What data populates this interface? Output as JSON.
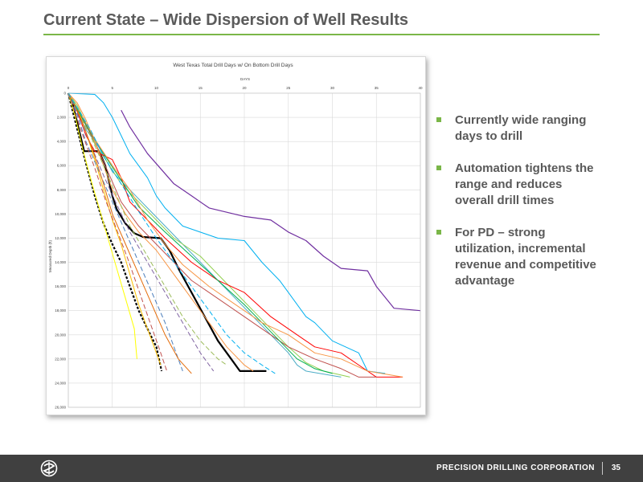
{
  "slide": {
    "title": "Current State – Wide Dispersion of Well Results"
  },
  "chart_data": {
    "type": "line",
    "title": "West Texas Total Drill Days w/ On Bottom Drill Days",
    "xlabel": "DAYS",
    "ylabel": "Measured Depth (ft)",
    "xlim": [
      0,
      40
    ],
    "ylim": [
      0,
      26000
    ],
    "x_ticks": [
      "0",
      "5",
      "10",
      "15",
      "20",
      "25",
      "30",
      "35",
      "40"
    ],
    "y_ticks": [
      "0",
      "2,000",
      "4,000",
      "6,000",
      "8,000",
      "10,000",
      "12,000",
      "14,000",
      "16,000",
      "18,000",
      "20,000",
      "22,000",
      "24,000",
      "26,000"
    ],
    "series": [
      {
        "color": "#000000",
        "width": 2.2,
        "dash": "",
        "points": [
          [
            0,
            0
          ],
          [
            0.6,
            1200
          ],
          [
            1.2,
            3000
          ],
          [
            1.8,
            4800
          ],
          [
            3.5,
            4800
          ],
          [
            4.2,
            6000
          ],
          [
            5,
            8500
          ],
          [
            5.5,
            9600
          ],
          [
            6.5,
            10800
          ],
          [
            7.5,
            11600
          ],
          [
            8.5,
            11900
          ],
          [
            10.5,
            12000
          ],
          [
            11.5,
            13000
          ],
          [
            12.5,
            14500
          ],
          [
            14,
            16500
          ],
          [
            15.5,
            18500
          ],
          [
            17,
            20500
          ],
          [
            18.5,
            22000
          ],
          [
            19.5,
            23000
          ],
          [
            22.5,
            23000
          ]
        ]
      },
      {
        "color": "#000000",
        "width": 2.2,
        "dash": "3,2",
        "points": [
          [
            0,
            0
          ],
          [
            0.5,
            1500
          ],
          [
            1.2,
            3500
          ],
          [
            2,
            5800
          ],
          [
            3,
            8500
          ],
          [
            4,
            10800
          ],
          [
            5,
            12500
          ],
          [
            6,
            14000
          ],
          [
            7,
            16000
          ],
          [
            8,
            18000
          ],
          [
            9,
            19500
          ],
          [
            10,
            21000
          ],
          [
            10.6,
            23000
          ]
        ]
      },
      {
        "color": "#7030a0",
        "width": 1.2,
        "dash": "",
        "points": [
          [
            6,
            1400
          ],
          [
            7,
            2800
          ],
          [
            9,
            5000
          ],
          [
            12,
            7500
          ],
          [
            14,
            8500
          ],
          [
            16,
            9500
          ],
          [
            20,
            10200
          ],
          [
            23,
            10500
          ],
          [
            25,
            11500
          ],
          [
            27,
            12200
          ],
          [
            29,
            13500
          ],
          [
            31,
            14500
          ],
          [
            34,
            14700
          ],
          [
            35,
            16000
          ],
          [
            37,
            17800
          ],
          [
            40,
            18000
          ]
        ]
      },
      {
        "color": "#00b0f0",
        "width": 1.0,
        "dash": "",
        "points": [
          [
            0,
            0
          ],
          [
            3,
            100
          ],
          [
            4,
            800
          ],
          [
            5,
            2000
          ],
          [
            6,
            3500
          ],
          [
            7,
            5000
          ],
          [
            9,
            7000
          ],
          [
            10,
            8500
          ],
          [
            11,
            9500
          ],
          [
            13,
            11000
          ],
          [
            17,
            12000
          ],
          [
            20,
            12200
          ],
          [
            22,
            14000
          ],
          [
            24,
            15500
          ],
          [
            25,
            16500
          ],
          [
            27,
            18500
          ],
          [
            28,
            19000
          ],
          [
            30,
            20500
          ],
          [
            33,
            21500
          ],
          [
            34,
            23000
          ],
          [
            36,
            23200
          ]
        ]
      },
      {
        "color": "#4bacc6",
        "width": 1.0,
        "dash": "",
        "points": [
          [
            0,
            0
          ],
          [
            1,
            1500
          ],
          [
            2,
            3000
          ],
          [
            3.5,
            4500
          ],
          [
            5,
            6500
          ],
          [
            7,
            8000
          ],
          [
            9,
            9500
          ],
          [
            11,
            11000
          ],
          [
            13,
            12500
          ],
          [
            15,
            14000
          ],
          [
            17,
            15500
          ],
          [
            19,
            17000
          ],
          [
            21,
            18500
          ],
          [
            23,
            20000
          ],
          [
            25,
            21500
          ],
          [
            26,
            22500
          ],
          [
            27,
            23000
          ],
          [
            31,
            23500
          ]
        ]
      },
      {
        "color": "#92d050",
        "width": 1.0,
        "dash": "",
        "points": [
          [
            0,
            0
          ],
          [
            1,
            1000
          ],
          [
            2,
            2500
          ],
          [
            3,
            4200
          ],
          [
            4.5,
            5800
          ],
          [
            6,
            7500
          ],
          [
            8,
            9000
          ],
          [
            10,
            10500
          ],
          [
            12,
            12000
          ],
          [
            15,
            13500
          ],
          [
            17,
            15000
          ],
          [
            19,
            16500
          ],
          [
            21,
            18000
          ],
          [
            23,
            19500
          ],
          [
            25,
            21000
          ],
          [
            27,
            22300
          ],
          [
            29,
            23000
          ],
          [
            32,
            23500
          ]
        ]
      },
      {
        "color": "#ff0000",
        "width": 1.0,
        "dash": "",
        "points": [
          [
            0,
            0
          ],
          [
            1,
            1500
          ],
          [
            2,
            3500
          ],
          [
            3,
            4800
          ],
          [
            5,
            5500
          ],
          [
            6,
            7000
          ],
          [
            7,
            9000
          ],
          [
            9,
            10500
          ],
          [
            11,
            12000
          ],
          [
            14,
            14000
          ],
          [
            17,
            15500
          ],
          [
            20,
            16500
          ],
          [
            23,
            18500
          ],
          [
            26,
            20000
          ],
          [
            28,
            21000
          ],
          [
            31,
            21500
          ],
          [
            33,
            22500
          ],
          [
            35,
            23500
          ],
          [
            38,
            23500
          ]
        ]
      },
      {
        "color": "#c0504d",
        "width": 1.0,
        "dash": "",
        "points": [
          [
            0,
            0
          ],
          [
            1.5,
            2000
          ],
          [
            3,
            4000
          ],
          [
            4.5,
            6500
          ],
          [
            6,
            9000
          ],
          [
            8,
            11000
          ],
          [
            10,
            12500
          ],
          [
            12,
            14000
          ],
          [
            14,
            15500
          ],
          [
            17,
            17000
          ],
          [
            20,
            18500
          ],
          [
            22,
            19500
          ],
          [
            25,
            21000
          ],
          [
            28,
            22000
          ],
          [
            31,
            22800
          ],
          [
            33,
            23500
          ],
          [
            35,
            23500
          ]
        ]
      },
      {
        "color": "#f79646",
        "width": 1.0,
        "dash": "",
        "points": [
          [
            0,
            0
          ],
          [
            1,
            800
          ],
          [
            2,
            2200
          ],
          [
            3,
            4000
          ],
          [
            4,
            6000
          ],
          [
            5,
            8000
          ],
          [
            6.5,
            10000
          ],
          [
            8,
            11500
          ],
          [
            10,
            13000
          ],
          [
            12,
            15000
          ],
          [
            14,
            17000
          ],
          [
            16,
            19000
          ],
          [
            18,
            21000
          ],
          [
            20,
            22500
          ],
          [
            21,
            23000
          ]
        ]
      },
      {
        "color": "#ffc000",
        "width": 1.0,
        "dash": "",
        "points": [
          [
            0,
            0
          ],
          [
            1,
            1200
          ],
          [
            2,
            3200
          ],
          [
            3,
            5500
          ],
          [
            4,
            8000
          ],
          [
            5,
            10500
          ],
          [
            6,
            12500
          ],
          [
            7,
            15000
          ],
          [
            8,
            17500
          ],
          [
            9,
            19500
          ],
          [
            10,
            21500
          ],
          [
            10.5,
            22500
          ]
        ]
      },
      {
        "color": "#ffff00",
        "width": 1.0,
        "dash": "",
        "points": [
          [
            0,
            0
          ],
          [
            0.8,
            2000
          ],
          [
            1.6,
            4500
          ],
          [
            2.5,
            7000
          ],
          [
            3.5,
            9500
          ],
          [
            4.5,
            12000
          ],
          [
            5.5,
            14500
          ],
          [
            6.5,
            17000
          ],
          [
            7.5,
            19500
          ],
          [
            7.8,
            22000
          ]
        ]
      },
      {
        "color": "#9bbb59",
        "width": 1.0,
        "dash": "6,3",
        "points": [
          [
            0,
            0
          ],
          [
            1,
            1500
          ],
          [
            2.5,
            3500
          ],
          [
            4,
            6000
          ],
          [
            5.5,
            8500
          ],
          [
            7,
            11000
          ],
          [
            9,
            13500
          ],
          [
            11,
            16000
          ],
          [
            13,
            18500
          ],
          [
            15,
            20500
          ],
          [
            17,
            22000
          ],
          [
            18,
            22500
          ]
        ]
      },
      {
        "color": "#8064a2",
        "width": 1.0,
        "dash": "6,3",
        "points": [
          [
            0,
            0
          ],
          [
            1.2,
            2000
          ],
          [
            2.5,
            4200
          ],
          [
            4,
            6800
          ],
          [
            5.5,
            9200
          ],
          [
            7,
            11500
          ],
          [
            9,
            14000
          ],
          [
            11,
            16500
          ],
          [
            13,
            19000
          ],
          [
            15,
            21500
          ],
          [
            16.5,
            23000
          ]
        ]
      },
      {
        "color": "#4f81bd",
        "width": 1.0,
        "dash": "6,3",
        "points": [
          [
            0,
            0
          ],
          [
            1,
            1800
          ],
          [
            2,
            4000
          ],
          [
            3.5,
            6500
          ],
          [
            5,
            9000
          ],
          [
            6.5,
            11500
          ],
          [
            8,
            14000
          ],
          [
            9.5,
            16500
          ],
          [
            11,
            19000
          ],
          [
            12,
            21000
          ],
          [
            13,
            23000
          ]
        ]
      },
      {
        "color": "#e46c0a",
        "width": 1.0,
        "dash": "",
        "points": [
          [
            0,
            0
          ],
          [
            1,
            1400
          ],
          [
            2,
            3200
          ],
          [
            3,
            5200
          ],
          [
            4,
            7500
          ],
          [
            5,
            10000
          ],
          [
            6.5,
            12500
          ],
          [
            8,
            15000
          ],
          [
            9.5,
            17500
          ],
          [
            11,
            20000
          ],
          [
            12.5,
            22000
          ],
          [
            14,
            23200
          ]
        ]
      },
      {
        "color": "#c0504d",
        "width": 1.0,
        "dash": "6,3",
        "points": [
          [
            0,
            0
          ],
          [
            0.8,
            1700
          ],
          [
            1.8,
            3800
          ],
          [
            3,
            6200
          ],
          [
            4.2,
            8800
          ],
          [
            5.5,
            11300
          ],
          [
            6.8,
            13800
          ],
          [
            8,
            16300
          ],
          [
            9.2,
            18800
          ],
          [
            10.4,
            21300
          ],
          [
            11.2,
            23000
          ]
        ]
      },
      {
        "color": "#00b050",
        "width": 1.0,
        "dash": "",
        "points": [
          [
            0,
            0
          ],
          [
            1,
            1300
          ],
          [
            2.3,
            3000
          ],
          [
            4,
            5000
          ],
          [
            6,
            7200
          ],
          [
            8,
            9400
          ],
          [
            11,
            11500
          ],
          [
            14,
            13500
          ],
          [
            17,
            15500
          ],
          [
            20,
            17500
          ],
          [
            22,
            19000
          ],
          [
            24,
            20500
          ],
          [
            26,
            22000
          ],
          [
            28,
            22800
          ],
          [
            30,
            23200
          ]
        ]
      },
      {
        "color": "#f79646",
        "width": 1.0,
        "dash": "",
        "points": [
          [
            0,
            0
          ],
          [
            1.5,
            1800
          ],
          [
            3,
            3800
          ],
          [
            5,
            6000
          ],
          [
            7,
            8000
          ],
          [
            9,
            10500
          ],
          [
            11,
            12500
          ],
          [
            13,
            14200
          ],
          [
            16,
            16000
          ],
          [
            19,
            17500
          ],
          [
            22,
            19000
          ],
          [
            25,
            20000
          ],
          [
            28,
            21500
          ],
          [
            31,
            22000
          ],
          [
            34,
            23000
          ],
          [
            38,
            23500
          ]
        ]
      },
      {
        "color": "#00b0f0",
        "width": 1.0,
        "dash": "6,3",
        "points": [
          [
            0,
            0
          ],
          [
            1,
            1200
          ],
          [
            2.5,
            3000
          ],
          [
            4,
            5200
          ],
          [
            6,
            7500
          ],
          [
            8,
            9800
          ],
          [
            10,
            12000
          ],
          [
            12,
            14000
          ],
          [
            14,
            16000
          ],
          [
            16,
            18000
          ],
          [
            18,
            20000
          ],
          [
            20,
            21500
          ],
          [
            22,
            22500
          ],
          [
            23.5,
            23200
          ]
        ]
      }
    ]
  },
  "bullets": [
    "Currently wide ranging days to drill",
    "Automation tightens the range and reduces overall drill times",
    "For PD – strong utilization, incremental revenue and competitive advantage"
  ],
  "footer": {
    "company": "PRECISION DRILLING CORPORATION",
    "page": "35"
  },
  "colors": {
    "accent": "#7ab648",
    "title": "#5b5b5b",
    "footer_bg": "#404040"
  }
}
